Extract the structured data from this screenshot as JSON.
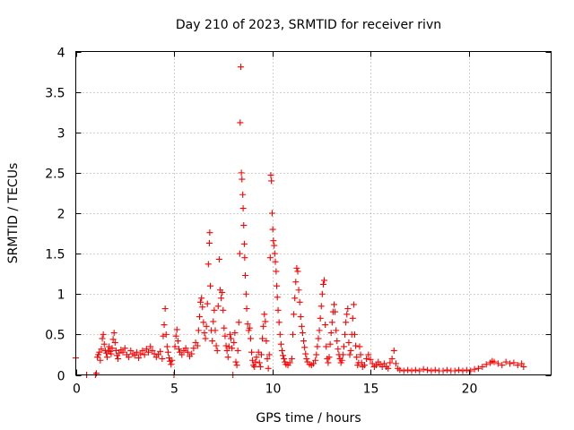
{
  "chart_data": {
    "type": "scatter",
    "title": "Day 210 of 2023, SRMTID for receiver rivn",
    "xlabel": "GPS time / hours",
    "ylabel": "SRMTID / TECUs",
    "xlim": [
      0,
      24.2
    ],
    "ylim": [
      0,
      4
    ],
    "x_ticks": [
      0,
      5,
      10,
      15,
      20
    ],
    "x_tick_labels": [
      "0",
      "5",
      "10",
      "15",
      "20"
    ],
    "y_ticks": [
      0,
      0.5,
      1,
      1.5,
      2,
      2.5,
      3,
      3.5,
      4
    ],
    "y_tick_labels": [
      "0",
      "0.5",
      "1",
      "1.5",
      "2",
      "2.5",
      "3",
      "3.5",
      "4"
    ],
    "grid": true,
    "marker": "+",
    "color": "#ff0000",
    "series": [
      {
        "name": "SRMTID",
        "points": [
          [
            0.0,
            0.21
          ],
          [
            0.55,
            0.0
          ],
          [
            1.0,
            0.0
          ],
          [
            1.05,
            0.02
          ],
          [
            1.1,
            0.22
          ],
          [
            1.15,
            0.25
          ],
          [
            1.2,
            0.28
          ],
          [
            1.25,
            0.18
          ],
          [
            1.3,
            0.32
          ],
          [
            1.35,
            0.45
          ],
          [
            1.4,
            0.5
          ],
          [
            1.45,
            0.38
          ],
          [
            1.5,
            0.3
          ],
          [
            1.55,
            0.27
          ],
          [
            1.6,
            0.22
          ],
          [
            1.65,
            0.3
          ],
          [
            1.7,
            0.35
          ],
          [
            1.75,
            0.29
          ],
          [
            1.8,
            0.26
          ],
          [
            1.85,
            0.33
          ],
          [
            1.9,
            0.44
          ],
          [
            1.95,
            0.52
          ],
          [
            2.0,
            0.4
          ],
          [
            2.05,
            0.3
          ],
          [
            2.1,
            0.24
          ],
          [
            2.15,
            0.2
          ],
          [
            2.2,
            0.27
          ],
          [
            2.3,
            0.31
          ],
          [
            2.4,
            0.28
          ],
          [
            2.5,
            0.33
          ],
          [
            2.6,
            0.25
          ],
          [
            2.7,
            0.22
          ],
          [
            2.8,
            0.3
          ],
          [
            2.9,
            0.26
          ],
          [
            3.0,
            0.24
          ],
          [
            3.1,
            0.28
          ],
          [
            3.2,
            0.21
          ],
          [
            3.3,
            0.26
          ],
          [
            3.4,
            0.3
          ],
          [
            3.5,
            0.25
          ],
          [
            3.6,
            0.32
          ],
          [
            3.7,
            0.28
          ],
          [
            3.8,
            0.35
          ],
          [
            3.9,
            0.3
          ],
          [
            4.0,
            0.26
          ],
          [
            4.1,
            0.22
          ],
          [
            4.2,
            0.25
          ],
          [
            4.3,
            0.29
          ],
          [
            4.4,
            0.2
          ],
          [
            4.45,
            0.48
          ],
          [
            4.5,
            0.62
          ],
          [
            4.55,
            0.82
          ],
          [
            4.6,
            0.5
          ],
          [
            4.65,
            0.35
          ],
          [
            4.7,
            0.28
          ],
          [
            4.75,
            0.21
          ],
          [
            4.8,
            0.17
          ],
          [
            4.85,
            0.13
          ],
          [
            4.9,
            0.18
          ],
          [
            5.0,
            0.0
          ],
          [
            5.05,
            0.35
          ],
          [
            5.1,
            0.48
          ],
          [
            5.15,
            0.56
          ],
          [
            5.2,
            0.42
          ],
          [
            5.25,
            0.32
          ],
          [
            5.3,
            0.28
          ],
          [
            5.4,
            0.25
          ],
          [
            5.5,
            0.3
          ],
          [
            5.6,
            0.33
          ],
          [
            5.7,
            0.28
          ],
          [
            5.8,
            0.23
          ],
          [
            5.9,
            0.26
          ],
          [
            6.0,
            0.33
          ],
          [
            6.1,
            0.4
          ],
          [
            6.2,
            0.36
          ],
          [
            6.25,
            0.55
          ],
          [
            6.3,
            0.72
          ],
          [
            6.35,
            0.9
          ],
          [
            6.4,
            0.95
          ],
          [
            6.45,
            0.84
          ],
          [
            6.5,
            0.65
          ],
          [
            6.55,
            0.52
          ],
          [
            6.6,
            0.45
          ],
          [
            6.65,
            0.6
          ],
          [
            6.7,
            0.88
          ],
          [
            6.75,
            1.37
          ],
          [
            6.8,
            1.63
          ],
          [
            6.82,
            1.76
          ],
          [
            6.85,
            1.1
          ],
          [
            6.9,
            0.55
          ],
          [
            6.95,
            0.42
          ],
          [
            7.0,
            0.66
          ],
          [
            7.05,
            0.8
          ],
          [
            7.1,
            0.55
          ],
          [
            7.15,
            0.36
          ],
          [
            7.2,
            0.3
          ],
          [
            7.25,
            0.85
          ],
          [
            7.3,
            1.43
          ],
          [
            7.35,
            1.05
          ],
          [
            7.4,
            0.95
          ],
          [
            7.45,
            1.02
          ],
          [
            7.5,
            0.8
          ],
          [
            7.55,
            0.58
          ],
          [
            7.6,
            0.48
          ],
          [
            7.65,
            0.36
          ],
          [
            7.7,
            0.3
          ],
          [
            7.75,
            0.22
          ],
          [
            7.8,
            0.35
          ],
          [
            7.85,
            0.5
          ],
          [
            7.9,
            0.45
          ],
          [
            7.95,
            0.33
          ],
          [
            8.0,
            0.0
          ],
          [
            8.05,
            0.4
          ],
          [
            8.1,
            0.52
          ],
          [
            8.15,
            0.16
          ],
          [
            8.2,
            0.12
          ],
          [
            8.25,
            0.3
          ],
          [
            8.3,
            0.65
          ],
          [
            8.35,
            1.5
          ],
          [
            8.37,
            3.12
          ],
          [
            8.4,
            3.81
          ],
          [
            8.43,
            2.5
          ],
          [
            8.46,
            2.42
          ],
          [
            8.5,
            2.23
          ],
          [
            8.52,
            2.06
          ],
          [
            8.55,
            1.85
          ],
          [
            8.58,
            1.62
          ],
          [
            8.6,
            1.45
          ],
          [
            8.63,
            1.23
          ],
          [
            8.67,
            1.0
          ],
          [
            8.7,
            0.82
          ],
          [
            8.75,
            0.63
          ],
          [
            8.8,
            0.55
          ],
          [
            8.85,
            0.58
          ],
          [
            8.9,
            0.45
          ],
          [
            8.95,
            0.28
          ],
          [
            9.0,
            0.18
          ],
          [
            9.05,
            0.12
          ],
          [
            9.1,
            0.1
          ],
          [
            9.15,
            0.16
          ],
          [
            9.2,
            0.22
          ],
          [
            9.3,
            0.28
          ],
          [
            9.35,
            0.15
          ],
          [
            9.4,
            0.1
          ],
          [
            9.45,
            0.25
          ],
          [
            9.5,
            0.45
          ],
          [
            9.55,
            0.6
          ],
          [
            9.6,
            0.75
          ],
          [
            9.65,
            0.66
          ],
          [
            9.7,
            0.42
          ],
          [
            9.75,
            0.2
          ],
          [
            9.8,
            0.08
          ],
          [
            9.85,
            0.25
          ],
          [
            9.9,
            1.45
          ],
          [
            9.93,
            2.47
          ],
          [
            9.96,
            2.4
          ],
          [
            10.0,
            2.0
          ],
          [
            10.03,
            1.8
          ],
          [
            10.06,
            1.66
          ],
          [
            10.1,
            1.6
          ],
          [
            10.13,
            1.5
          ],
          [
            10.16,
            1.4
          ],
          [
            10.2,
            1.28
          ],
          [
            10.23,
            1.1
          ],
          [
            10.26,
            0.96
          ],
          [
            10.3,
            0.8
          ],
          [
            10.35,
            0.65
          ],
          [
            10.4,
            0.5
          ],
          [
            10.45,
            0.38
          ],
          [
            10.5,
            0.3
          ],
          [
            10.55,
            0.24
          ],
          [
            10.6,
            0.2
          ],
          [
            10.65,
            0.16
          ],
          [
            10.7,
            0.13
          ],
          [
            10.8,
            0.12
          ],
          [
            10.9,
            0.15
          ],
          [
            11.0,
            0.2
          ],
          [
            11.05,
            0.5
          ],
          [
            11.1,
            0.75
          ],
          [
            11.15,
            0.95
          ],
          [
            11.2,
            1.15
          ],
          [
            11.25,
            1.32
          ],
          [
            11.3,
            1.28
          ],
          [
            11.35,
            1.05
          ],
          [
            11.4,
            0.9
          ],
          [
            11.45,
            0.72
          ],
          [
            11.5,
            0.6
          ],
          [
            11.55,
            0.52
          ],
          [
            11.6,
            0.42
          ],
          [
            11.65,
            0.34
          ],
          [
            11.7,
            0.26
          ],
          [
            11.75,
            0.2
          ],
          [
            11.8,
            0.16
          ],
          [
            11.9,
            0.13
          ],
          [
            12.0,
            0.12
          ],
          [
            12.1,
            0.14
          ],
          [
            12.2,
            0.18
          ],
          [
            12.25,
            0.25
          ],
          [
            12.3,
            0.35
          ],
          [
            12.35,
            0.45
          ],
          [
            12.4,
            0.55
          ],
          [
            12.45,
            0.7
          ],
          [
            12.5,
            0.85
          ],
          [
            12.55,
            1.0
          ],
          [
            12.6,
            1.12
          ],
          [
            12.65,
            1.17
          ],
          [
            12.7,
            0.62
          ],
          [
            12.75,
            0.35
          ],
          [
            12.8,
            0.2
          ],
          [
            12.85,
            0.15
          ],
          [
            12.9,
            0.22
          ],
          [
            12.95,
            0.38
          ],
          [
            13.0,
            0.52
          ],
          [
            13.05,
            0.65
          ],
          [
            13.1,
            0.78
          ],
          [
            13.15,
            0.87
          ],
          [
            13.2,
            0.78
          ],
          [
            13.25,
            0.55
          ],
          [
            13.3,
            0.42
          ],
          [
            13.35,
            0.32
          ],
          [
            13.4,
            0.25
          ],
          [
            13.45,
            0.2
          ],
          [
            13.5,
            0.15
          ],
          [
            13.55,
            0.18
          ],
          [
            13.6,
            0.25
          ],
          [
            13.65,
            0.35
          ],
          [
            13.7,
            0.5
          ],
          [
            13.75,
            0.65
          ],
          [
            13.8,
            0.75
          ],
          [
            13.85,
            0.82
          ],
          [
            13.9,
            0.4
          ],
          [
            13.95,
            0.25
          ],
          [
            14.0,
            0.3
          ],
          [
            14.05,
            0.5
          ],
          [
            14.1,
            0.7
          ],
          [
            14.15,
            0.87
          ],
          [
            14.2,
            0.5
          ],
          [
            14.25,
            0.36
          ],
          [
            14.3,
            0.22
          ],
          [
            14.35,
            0.12
          ],
          [
            14.4,
            0.15
          ],
          [
            14.45,
            0.35
          ],
          [
            14.5,
            0.25
          ],
          [
            14.55,
            0.15
          ],
          [
            14.6,
            0.1
          ],
          [
            14.7,
            0.12
          ],
          [
            14.8,
            0.2
          ],
          [
            14.9,
            0.25
          ],
          [
            15.0,
            0.19
          ],
          [
            15.1,
            0.14
          ],
          [
            15.2,
            0.1
          ],
          [
            15.3,
            0.12
          ],
          [
            15.4,
            0.16
          ],
          [
            15.5,
            0.13
          ],
          [
            15.6,
            0.1
          ],
          [
            15.7,
            0.14
          ],
          [
            15.8,
            0.1
          ],
          [
            15.9,
            0.08
          ],
          [
            16.0,
            0.15
          ],
          [
            16.1,
            0.2
          ],
          [
            16.2,
            0.3
          ],
          [
            16.3,
            0.14
          ],
          [
            16.4,
            0.08
          ],
          [
            16.5,
            0.06
          ],
          [
            16.7,
            0.05
          ],
          [
            16.9,
            0.06
          ],
          [
            17.1,
            0.05
          ],
          [
            17.3,
            0.06
          ],
          [
            17.5,
            0.05
          ],
          [
            17.7,
            0.07
          ],
          [
            17.9,
            0.06
          ],
          [
            18.1,
            0.05
          ],
          [
            18.3,
            0.06
          ],
          [
            18.5,
            0.05
          ],
          [
            18.7,
            0.05
          ],
          [
            18.9,
            0.06
          ],
          [
            19.1,
            0.05
          ],
          [
            19.3,
            0.05
          ],
          [
            19.5,
            0.06
          ],
          [
            19.7,
            0.05
          ],
          [
            19.9,
            0.06
          ],
          [
            20.1,
            0.05
          ],
          [
            20.3,
            0.07
          ],
          [
            20.5,
            0.08
          ],
          [
            20.7,
            0.1
          ],
          [
            20.9,
            0.13
          ],
          [
            21.1,
            0.15
          ],
          [
            21.2,
            0.17
          ],
          [
            21.3,
            0.16
          ],
          [
            21.5,
            0.14
          ],
          [
            21.7,
            0.12
          ],
          [
            21.9,
            0.16
          ],
          [
            22.1,
            0.14
          ],
          [
            22.3,
            0.15
          ],
          [
            22.5,
            0.12
          ],
          [
            22.7,
            0.14
          ],
          [
            22.8,
            0.1
          ]
        ]
      }
    ]
  }
}
